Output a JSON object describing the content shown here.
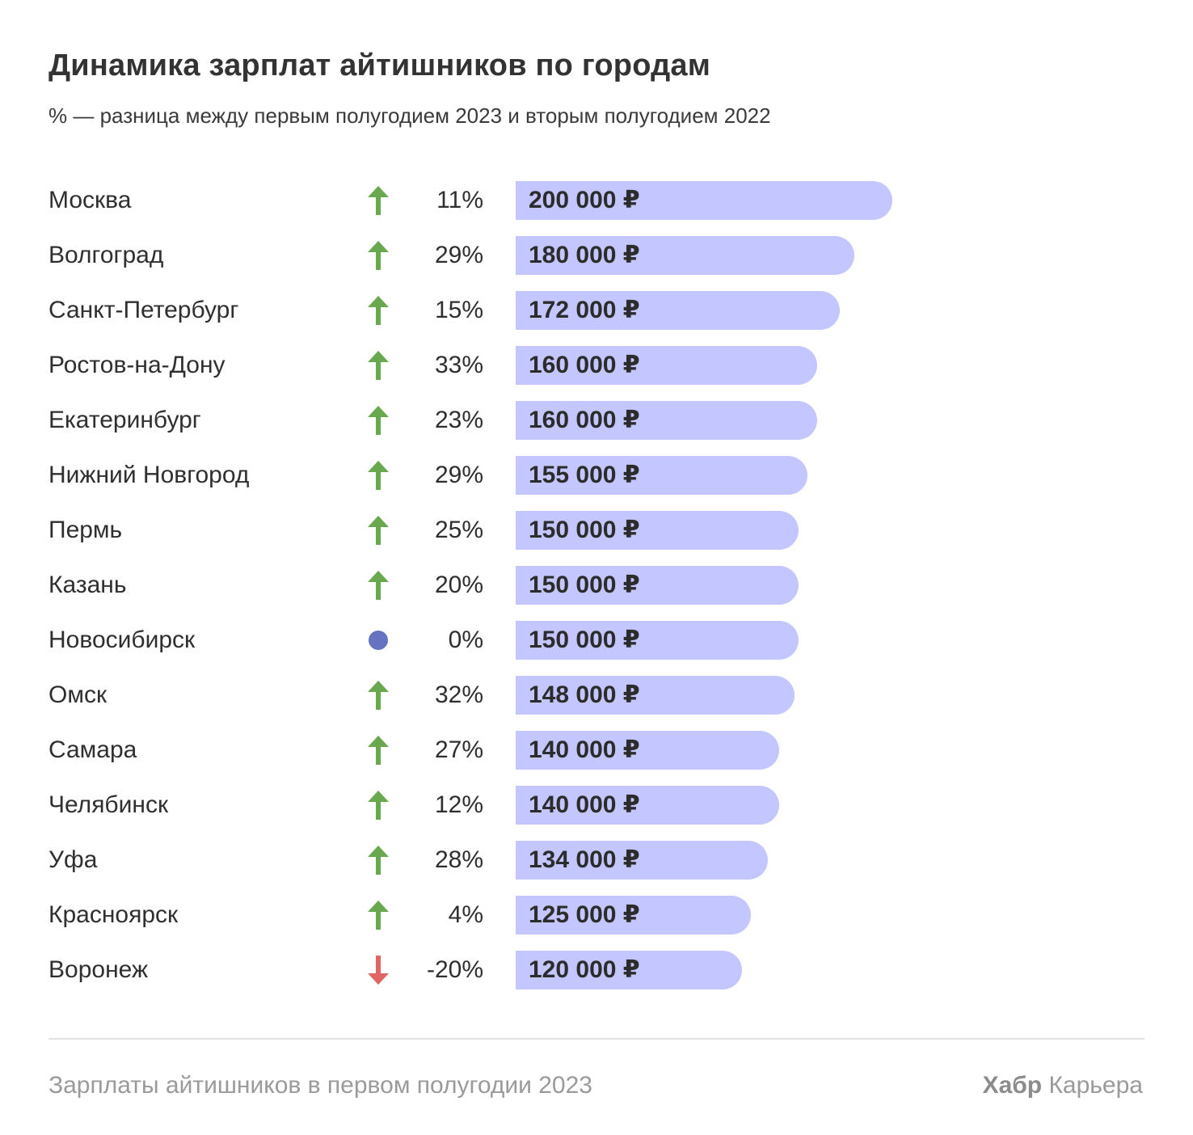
{
  "header": {
    "title": "Динамика зарплат айтишников по городам",
    "subtitle": "% — разница между первым полугодием 2023 и вторым полугодием 2022"
  },
  "colors": {
    "bar": "#c3c6ff",
    "up": "#6aa84f",
    "down": "#e06666",
    "neutral": "#6673c2"
  },
  "chart_data": {
    "type": "bar",
    "orientation": "horizontal",
    "title": "Динамика зарплат айтишников по городам",
    "subtitle": "% — разница между первым полугодием 2023 и вторым полугодием 2022",
    "categories": [
      "Москва",
      "Волгоград",
      "Санкт-Петербург",
      "Ростов-на-Дону",
      "Екатеринбург",
      "Нижний Новгород",
      "Пермь",
      "Казань",
      "Новосибирск",
      "Омск",
      "Самара",
      "Челябинск",
      "Уфа",
      "Красноярск",
      "Воронеж"
    ],
    "values": [
      200000,
      180000,
      172000,
      160000,
      160000,
      155000,
      150000,
      150000,
      150000,
      148000,
      140000,
      140000,
      134000,
      125000,
      120000
    ],
    "value_labels": [
      "200 000 ₽",
      "180 000 ₽",
      "172 000 ₽",
      "160 000 ₽",
      "160 000 ₽",
      "155 000 ₽",
      "150 000 ₽",
      "150 000 ₽",
      "150 000 ₽",
      "148 000 ₽",
      "140 000 ₽",
      "140 000 ₽",
      "134 000 ₽",
      "125 000 ₽",
      "120 000 ₽"
    ],
    "change_labels": [
      "11%",
      "29%",
      "15%",
      "33%",
      "23%",
      "29%",
      "25%",
      "20%",
      "0%",
      "32%",
      "27%",
      "12%",
      "28%",
      "4%",
      "-20%"
    ],
    "trend": [
      "up",
      "up",
      "up",
      "up",
      "up",
      "up",
      "up",
      "up",
      "flat",
      "up",
      "up",
      "up",
      "up",
      "up",
      "down"
    ],
    "trend_icons": [
      "arrow-up-icon",
      "arrow-up-icon",
      "arrow-up-icon",
      "arrow-up-icon",
      "arrow-up-icon",
      "arrow-up-icon",
      "arrow-up-icon",
      "arrow-up-icon",
      "dot-icon",
      "arrow-up-icon",
      "arrow-up-icon",
      "arrow-up-icon",
      "arrow-up-icon",
      "arrow-up-icon",
      "arrow-down-icon"
    ],
    "xlim": [
      0,
      200000
    ],
    "grid": false
  },
  "footer": {
    "caption": "Зарплаты айтишников в первом полугодии 2023",
    "brand_bold": "Хабр",
    "brand_rest": " Карьера"
  }
}
